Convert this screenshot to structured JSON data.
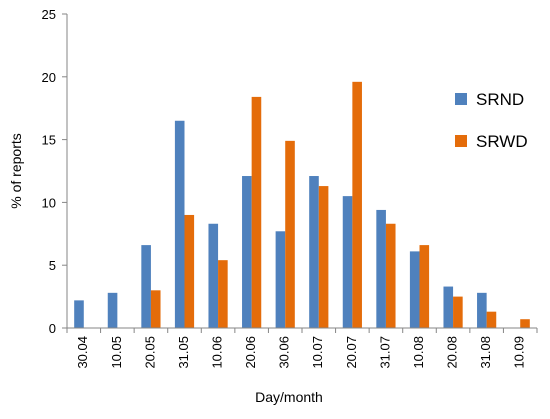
{
  "chart_data": {
    "type": "bar",
    "xlabel": "Day/month",
    "ylabel": "% of reports",
    "ylim": [
      0,
      25
    ],
    "yticks": [
      0,
      5,
      10,
      15,
      20,
      25
    ],
    "grid": false,
    "legend_position": "right",
    "categories": [
      "30.04",
      "10.05",
      "20.05",
      "31.05",
      "10.06",
      "20.06",
      "30.06",
      "10.07",
      "20.07",
      "31.07",
      "10.08",
      "20.08",
      "31.08",
      "10.09"
    ],
    "series": [
      {
        "name": "SRND",
        "color": "#4f81bd",
        "values": [
          2.2,
          2.8,
          6.6,
          16.5,
          8.3,
          12.1,
          7.7,
          12.1,
          10.5,
          9.4,
          6.1,
          3.3,
          2.8,
          0
        ]
      },
      {
        "name": "SRWD",
        "color": "#e46c0a",
        "values": [
          0,
          0,
          3.0,
          9.0,
          5.4,
          18.4,
          14.9,
          11.3,
          19.6,
          8.3,
          6.6,
          2.5,
          1.3,
          0.7
        ]
      }
    ]
  }
}
